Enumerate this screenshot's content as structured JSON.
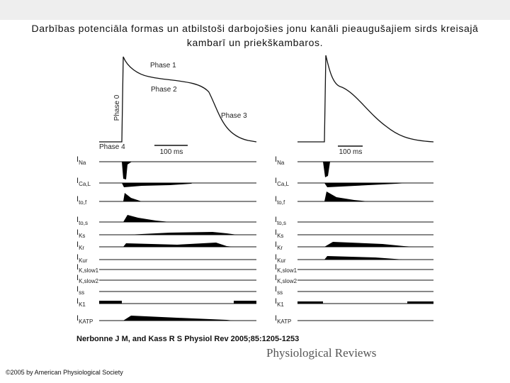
{
  "header": {
    "title": "Darbības potenciāla formas un atbilstoši darbojošies jonu kanāli pieaugušajiem sirds kreisajā kambarī un priekškambaros."
  },
  "left_panel": {
    "phases": [
      "Phase 0",
      "Phase 1",
      "Phase 2",
      "Phase 3",
      "Phase 4"
    ],
    "scale_label": "100 ms",
    "currents": [
      {
        "main": "I",
        "sub": "Na"
      },
      {
        "main": "I",
        "sub": "Ca,L"
      },
      {
        "main": "I",
        "sub": "to,f"
      },
      {
        "main": "I",
        "sub": "to,s"
      },
      {
        "main": "I",
        "sub": "Ks"
      },
      {
        "main": "I",
        "sub": "Kr"
      },
      {
        "main": "I",
        "sub": "Kur"
      },
      {
        "main": "I",
        "sub": "K,slow1"
      },
      {
        "main": "I",
        "sub": "K,slow2"
      },
      {
        "main": "I",
        "sub": "ss"
      },
      {
        "main": "I",
        "sub": "K1"
      },
      {
        "main": "I",
        "sub": "KATP"
      }
    ]
  },
  "right_panel": {
    "scale_label": "100 ms",
    "currents": [
      {
        "main": "I",
        "sub": "Na"
      },
      {
        "main": "I",
        "sub": "Ca,L"
      },
      {
        "main": "I",
        "sub": "to,f"
      },
      {
        "main": "I",
        "sub": "to,s"
      },
      {
        "main": "I",
        "sub": "Ks"
      },
      {
        "main": "I",
        "sub": "Kr"
      },
      {
        "main": "I",
        "sub": "Kur"
      },
      {
        "main": "I",
        "sub": "K,slow1"
      },
      {
        "main": "I",
        "sub": "K,slow2"
      },
      {
        "main": "I",
        "sub": "ss"
      },
      {
        "main": "I",
        "sub": "K1"
      },
      {
        "main": "I",
        "sub": "KATP"
      }
    ]
  },
  "citation": "Nerbonne J M, and Kass R S Physiol Rev 2005;85:1205-1253",
  "journal": "Physiological Reviews",
  "copyright": "©2005 by American Physiological Society"
}
